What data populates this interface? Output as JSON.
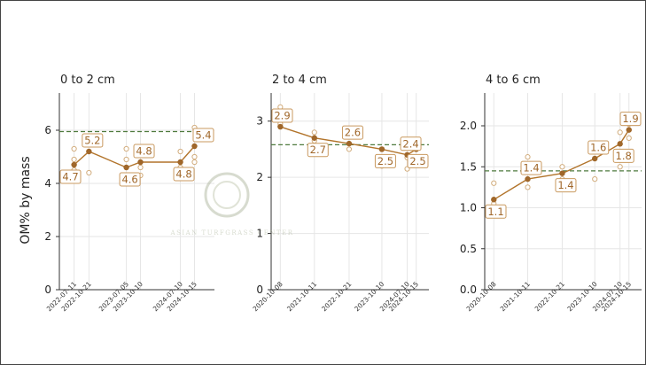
{
  "chart_data": {
    "type": "line",
    "ylabel": "OM% by mass",
    "colors": {
      "line": "#b2742b",
      "point": "#a0672a",
      "reference": "#4f7a3e",
      "grid": "#e6e6e6"
    },
    "panels": [
      {
        "title": "0 to 2 cm",
        "ylim": [
          0,
          7.4
        ],
        "yticks": [
          0,
          2,
          4,
          6
        ],
        "reference": 5.95,
        "xlim": [
          "2022-04-01",
          "2025-03-01"
        ],
        "x_tick_labels": [
          "2022-07-11",
          "2022-10-21",
          "2023-07-05",
          "2023-10-10",
          "2024-07-10",
          "2024-10-15"
        ],
        "mean_x": [
          "2022-07-11",
          "2022-10-21",
          "2023-07-05",
          "2023-10-10",
          "2024-07-10",
          "2024-10-15"
        ],
        "mean_y": [
          4.7,
          5.2,
          4.6,
          4.8,
          4.8,
          5.4
        ],
        "labels": [
          "4.7",
          "5.2",
          "4.6",
          "4.8",
          "4.8",
          "5.4"
        ],
        "samples": [
          [
            "2022-07-11",
            5.3
          ],
          [
            "2022-07-11",
            4.9
          ],
          [
            "2022-07-11",
            4.5
          ],
          [
            "2022-10-21",
            5.6
          ],
          [
            "2022-10-21",
            4.4
          ],
          [
            "2023-07-05",
            5.3
          ],
          [
            "2023-07-05",
            4.9
          ],
          [
            "2023-10-10",
            4.6
          ],
          [
            "2023-10-10",
            4.3
          ],
          [
            "2024-07-10",
            5.2
          ],
          [
            "2024-07-10",
            4.6
          ],
          [
            "2024-10-15",
            6.1
          ],
          [
            "2024-10-15",
            5.0
          ],
          [
            "2024-10-15",
            4.8
          ]
        ]
      },
      {
        "title": "2 to 4 cm",
        "ylim": [
          0,
          3.5
        ],
        "yticks": [
          0,
          1,
          2,
          3
        ],
        "reference": 2.58,
        "xlim": [
          "2020-07-01",
          "2025-03-01"
        ],
        "x_tick_labels": [
          "2020-10-08",
          "2021-10-11",
          "2022-10-21",
          "2023-10-10",
          "2024-07-10",
          "2024-10-15"
        ],
        "mean_x": [
          "2020-10-08",
          "2021-10-11",
          "2022-10-21",
          "2023-10-10",
          "2024-07-10",
          "2024-10-15"
        ],
        "mean_y": [
          2.9,
          2.7,
          2.6,
          2.5,
          2.4,
          2.5
        ],
        "labels": [
          "2.9",
          "2.7",
          "2.6",
          "2.5",
          "2.4",
          "2.5"
        ],
        "samples": [
          [
            "2020-10-08",
            3.25
          ],
          [
            "2020-10-08",
            2.95
          ],
          [
            "2021-10-11",
            2.8
          ],
          [
            "2021-10-11",
            2.65
          ],
          [
            "2022-10-21",
            2.75
          ],
          [
            "2022-10-21",
            2.5
          ],
          [
            "2023-10-10",
            2.5
          ],
          [
            "2023-10-10",
            2.2
          ],
          [
            "2024-07-10",
            2.35
          ],
          [
            "2024-07-10",
            2.15
          ],
          [
            "2024-10-15",
            2.6
          ],
          [
            "2024-10-15",
            2.35
          ]
        ]
      },
      {
        "title": "4 to 6 cm",
        "ylim": [
          0,
          2.4
        ],
        "yticks": [
          0.0,
          0.5,
          1.0,
          1.5,
          2.0
        ],
        "ytick_labels": [
          "0.0",
          "0.5",
          "1.0",
          "1.5",
          "2.0"
        ],
        "reference": 1.45,
        "xlim": [
          "2020-07-01",
          "2025-03-01"
        ],
        "x_tick_labels": [
          "2020-10-08",
          "2021-10-11",
          "2022-10-21",
          "2023-10-10",
          "2024-07-10",
          "2024-10-15"
        ],
        "mean_x": [
          "2020-10-08",
          "2021-10-11",
          "2022-10-21",
          "2023-10-10",
          "2024-07-10",
          "2024-10-15"
        ],
        "mean_y": [
          1.1,
          1.35,
          1.42,
          1.6,
          1.78,
          1.95
        ],
        "labels": [
          "1.1",
          "1.4",
          "1.4",
          "1.6",
          "1.8",
          "1.9"
        ],
        "samples": [
          [
            "2020-10-08",
            1.3
          ],
          [
            "2020-10-08",
            1.05
          ],
          [
            "2021-10-11",
            1.62
          ],
          [
            "2021-10-11",
            1.25
          ],
          [
            "2022-10-21",
            1.5
          ],
          [
            "2022-10-21",
            1.35
          ],
          [
            "2023-10-10",
            1.75
          ],
          [
            "2023-10-10",
            1.35
          ],
          [
            "2024-07-10",
            1.92
          ],
          [
            "2024-07-10",
            1.5
          ],
          [
            "2024-10-15",
            2.02
          ],
          [
            "2024-10-15",
            1.85
          ]
        ]
      }
    ]
  },
  "watermark": {
    "text": "ASIAN TURFGRASS CENTER"
  }
}
